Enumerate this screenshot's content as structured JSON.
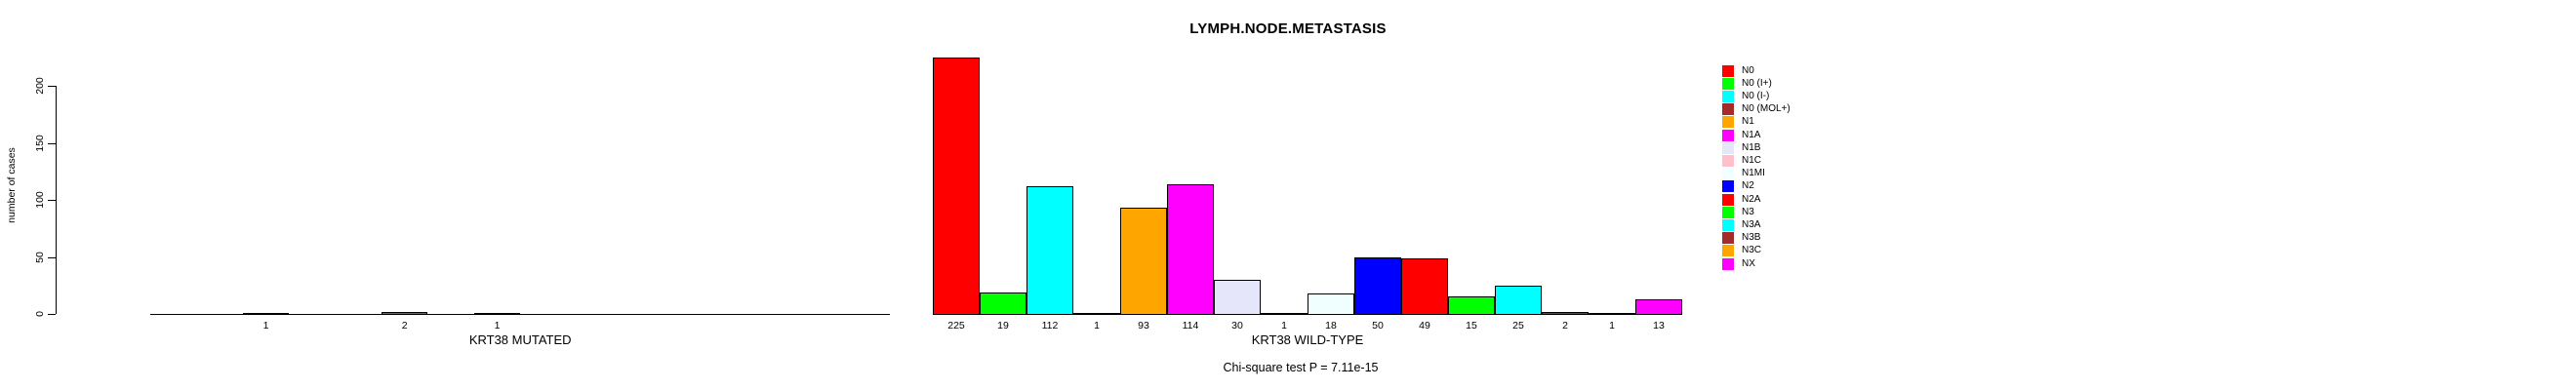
{
  "title": "LYMPH.NODE.METASTASIS",
  "y_axis": {
    "label": "number of cases"
  },
  "footer": {
    "chi_square_text": "Chi-square test P = 7.11e-15"
  },
  "chart_data": {
    "type": "bar",
    "title": "LYMPH.NODE.METASTASIS",
    "ylabel": "number of cases",
    "ylim": [
      0,
      200
    ],
    "yticks": [
      0,
      50,
      100,
      150,
      200
    ],
    "grid": false,
    "legend_position": "right",
    "categories": [
      "N0",
      "N0 (I+)",
      "N0 (I-)",
      "N0 (MOL+)",
      "N1",
      "N1A",
      "N1B",
      "N1C",
      "N1MI",
      "N2",
      "N2A",
      "N3",
      "N3A",
      "N3B",
      "N3C",
      "NX"
    ],
    "colors": [
      "#FF0000",
      "#00FF00",
      "#00FFFF",
      "#A52A2A",
      "#FFA500",
      "#FF00FF",
      "#E6E6FA",
      "#FFC0CB",
      "#F0FFFF",
      "#0000FF",
      "#FF0000",
      "#00FF00",
      "#00FFFF",
      "#A52A2A",
      "#FFA500",
      "#FF00FF"
    ],
    "groups": [
      {
        "label": "KRT38 MUTATED",
        "values": [
          0,
          0,
          1,
          0,
          0,
          2,
          0,
          1,
          0,
          0,
          0,
          0,
          0,
          0,
          0,
          0
        ]
      },
      {
        "label": "KRT38 WILD-TYPE",
        "values": [
          225,
          19,
          112,
          1,
          93,
          114,
          30,
          1,
          18,
          50,
          49,
          15,
          25,
          2,
          1,
          13
        ]
      }
    ],
    "annotation": "Chi-square test P = 7.11e-15"
  }
}
